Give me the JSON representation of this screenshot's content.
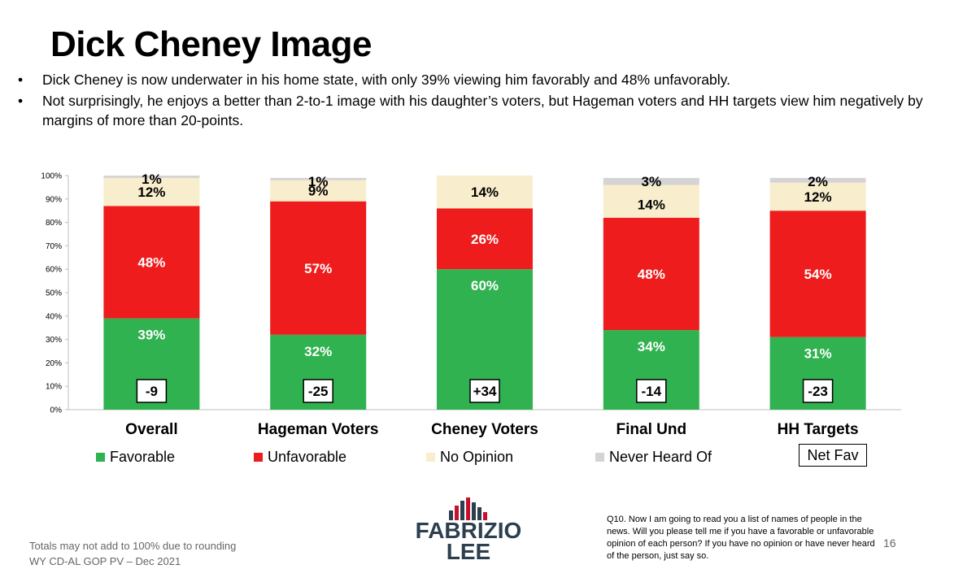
{
  "slide": {
    "title": "Dick Cheney Image",
    "bullets": [
      "Dick Cheney is now underwater in his home state, with only 39% viewing him favorably and 48% unfavorably.",
      "Not surprisingly, he enjoys a better than 2-to-1 image with his daughter’s voters, but Hageman voters and HH targets view him negatively by margins of more than 20-points."
    ],
    "footnote_rounding": "Totals may not add to 100% due to rounding",
    "footnote_survey": "WY CD-AL GOP PV – Dec 2021",
    "question": "Q10. Now I am going to read you a list of names of people in the news.  Will you please tell me if you have a favorable or unfavorable opinion of each person?  If you have no opinion or have never heard of the person, just say so.",
    "page_number": "16",
    "logo": {
      "line1": "FABRIZIO",
      "line2": "LEE"
    }
  },
  "colors": {
    "favorable": "#2fb24f",
    "unfavorable": "#ee1c1c",
    "no_opinion": "#f8edcc",
    "never_heard": "#d4d4d4",
    "axis": "#bfbfbf"
  },
  "legend": {
    "favorable": "Favorable",
    "unfavorable": "Unfavorable",
    "no_opinion": "No Opinion",
    "never_heard": "Never Heard Of",
    "net_fav": "Net Fav"
  },
  "chart_data": {
    "type": "bar",
    "stacked": true,
    "title": "",
    "xlabel": "",
    "ylabel": "",
    "ylim": [
      0,
      100
    ],
    "y_ticks": [
      "0%",
      "10%",
      "20%",
      "30%",
      "40%",
      "50%",
      "60%",
      "70%",
      "80%",
      "90%",
      "100%"
    ],
    "categories": [
      "Overall",
      "Hageman Voters",
      "Cheney Voters",
      "Final Und",
      "HH Targets"
    ],
    "series": [
      {
        "name": "Favorable",
        "key": "favorable",
        "values": [
          39,
          32,
          60,
          34,
          31
        ],
        "labels": [
          "39%",
          "32%",
          "60%",
          "34%",
          "31%"
        ]
      },
      {
        "name": "Unfavorable",
        "key": "unfavorable",
        "values": [
          48,
          57,
          26,
          48,
          54
        ],
        "labels": [
          "48%",
          "57%",
          "26%",
          "48%",
          "54%"
        ]
      },
      {
        "name": "No Opinion",
        "key": "no_opinion",
        "values": [
          12,
          9,
          14,
          14,
          12
        ],
        "labels": [
          "12%",
          "9%",
          "14%",
          "14%",
          "12%"
        ]
      },
      {
        "name": "Never Heard Of",
        "key": "never_heard",
        "values": [
          1,
          1,
          0,
          3,
          2
        ],
        "labels": [
          "1%",
          "1%",
          "",
          "3%",
          "2%"
        ]
      }
    ],
    "net_fav": [
      "-9",
      "-25",
      "+34",
      "-14",
      "-23"
    ]
  }
}
